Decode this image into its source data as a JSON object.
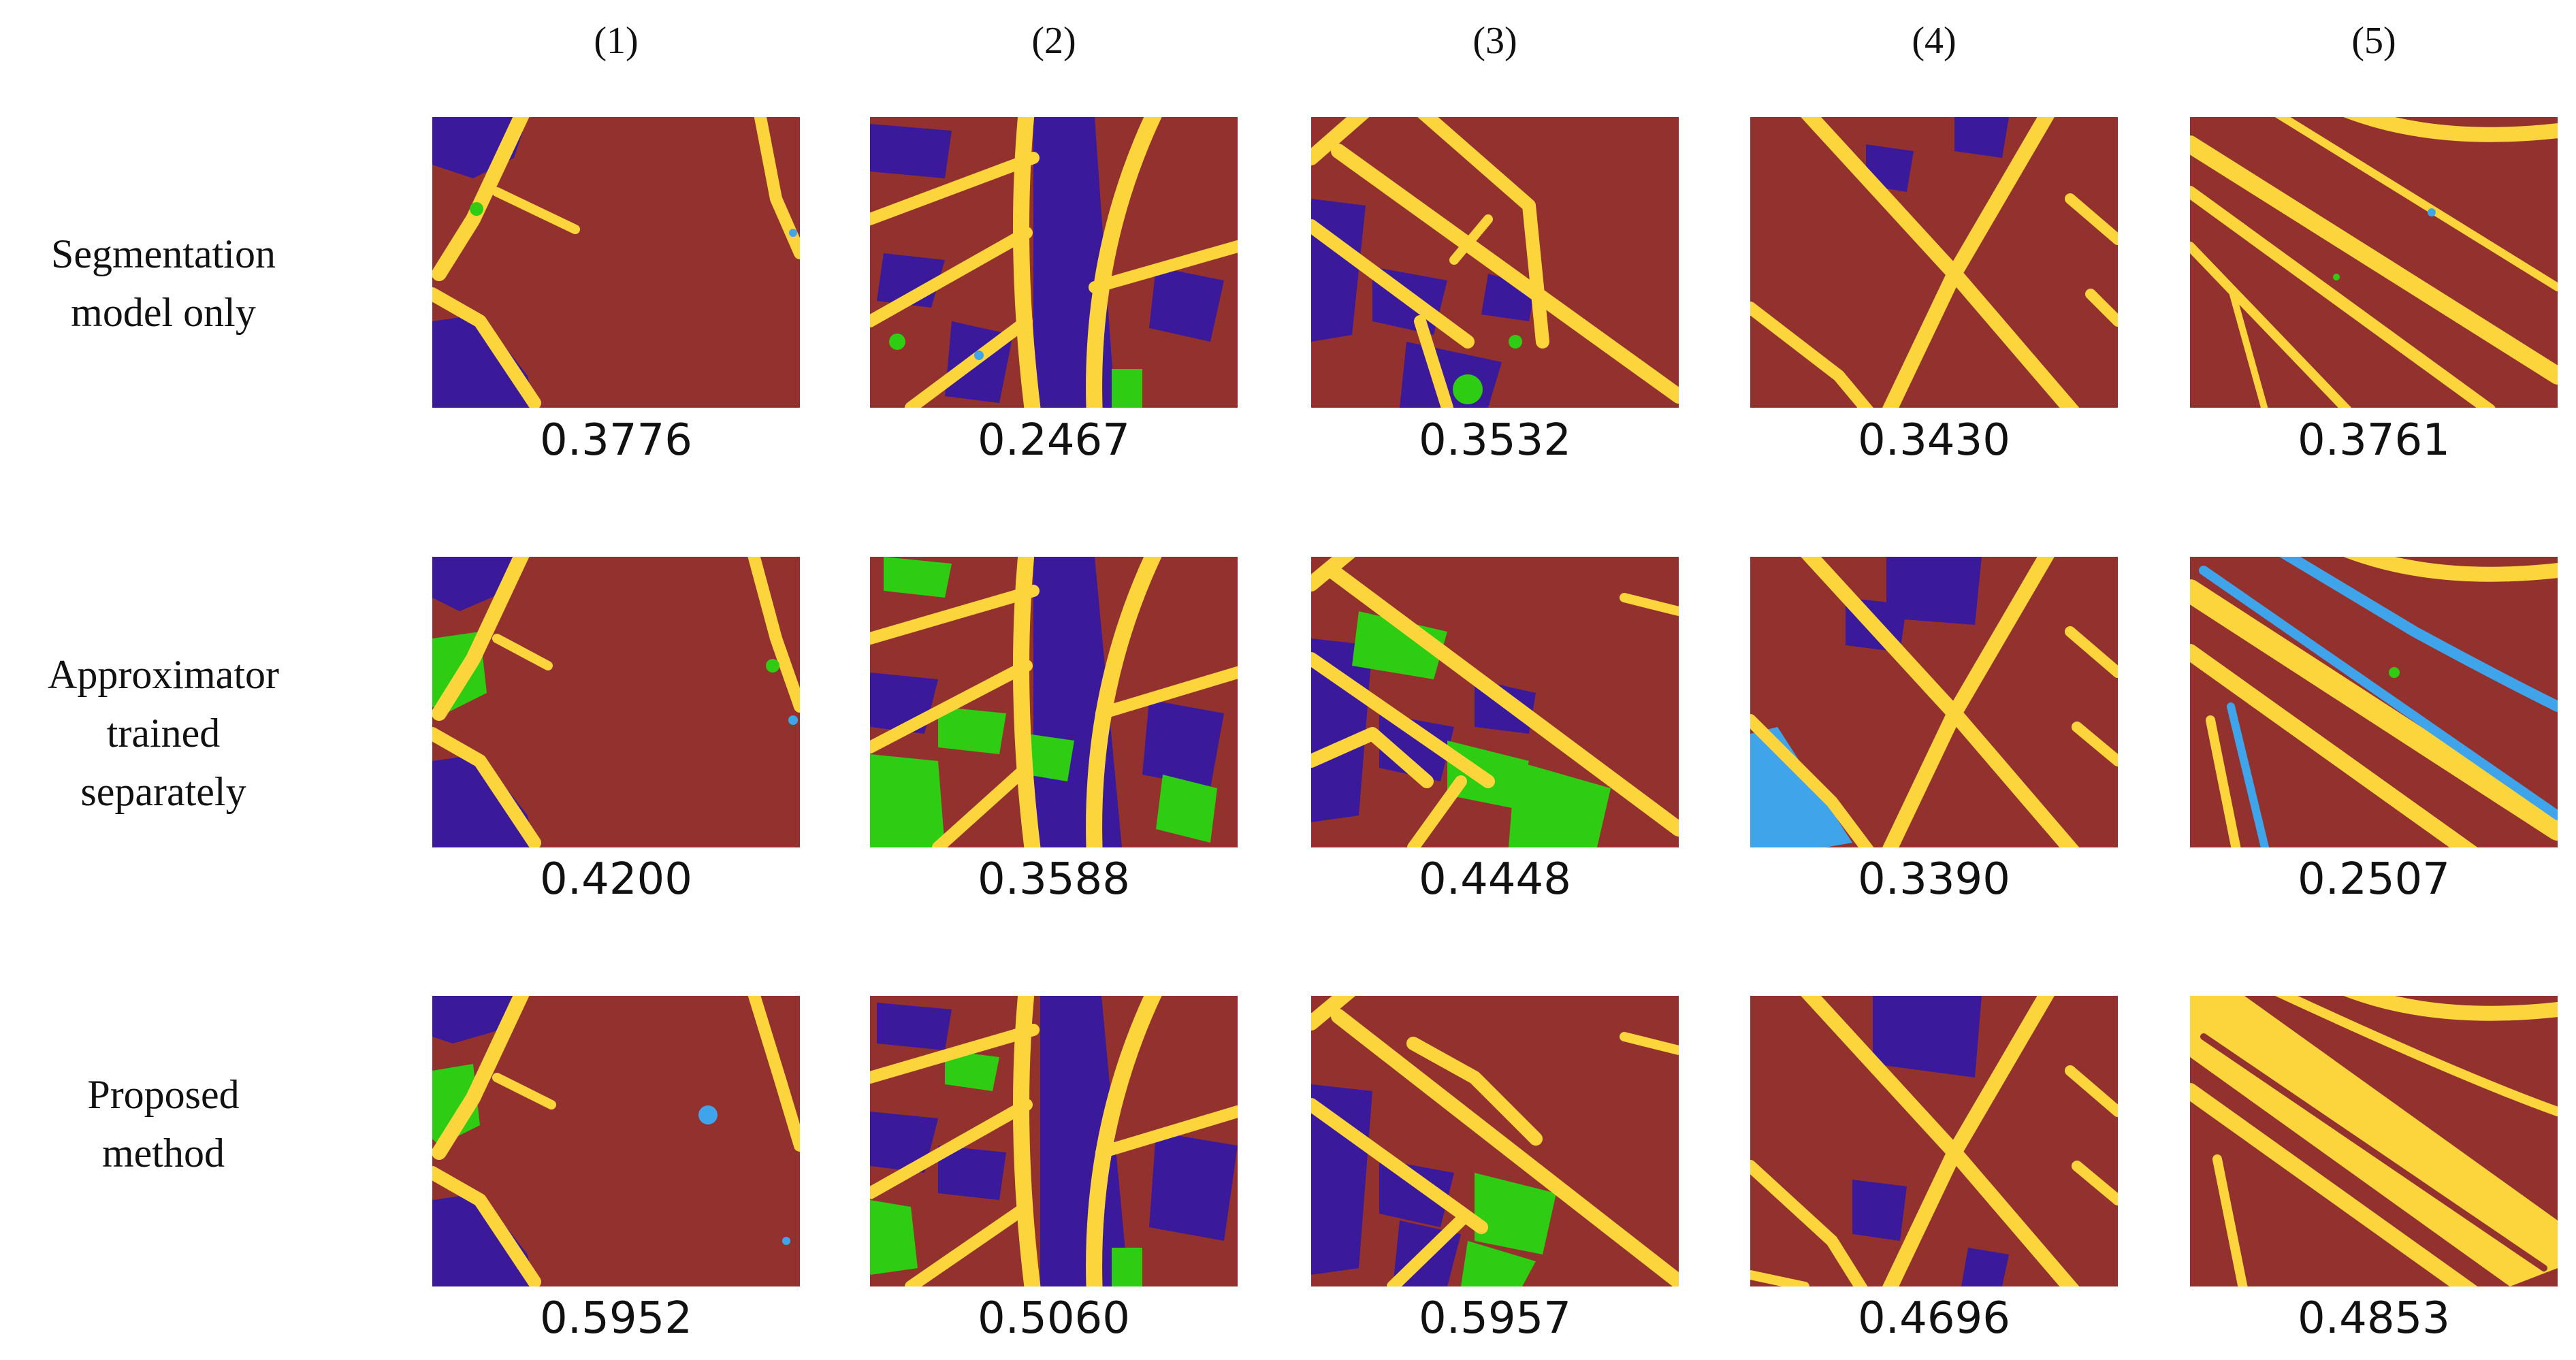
{
  "columns": [
    "(1)",
    "(2)",
    "(3)",
    "(4)",
    "(5)"
  ],
  "rows": [
    {
      "label_lines": [
        "Segmentation",
        "model only"
      ],
      "scores": [
        "0.3776",
        "0.2467",
        "0.3532",
        "0.3430",
        "0.3761"
      ]
    },
    {
      "label_lines": [
        "Approximator",
        "trained",
        "separately"
      ],
      "scores": [
        "0.4200",
        "0.3588",
        "0.4448",
        "0.3390",
        "0.2507"
      ]
    },
    {
      "label_lines": [
        "Proposed",
        "method"
      ],
      "scores": [
        "0.5952",
        "0.5060",
        "0.5957",
        "0.4696",
        "0.4853"
      ]
    }
  ],
  "colors": {
    "building": "#93312f",
    "road": "#fcd53d",
    "low_vegetation": "#3a1a9a",
    "tree": "#2ecc12",
    "car": "#3fa4ea"
  }
}
